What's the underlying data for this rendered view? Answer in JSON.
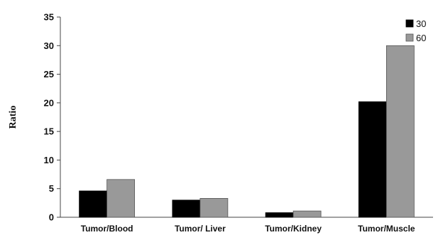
{
  "chart_data": {
    "type": "bar",
    "categories": [
      "Tumor/Blood",
      "Tumor/ Liver",
      "Tumor/Kidney",
      "Tumor/Muscle"
    ],
    "series": [
      {
        "name": "30",
        "values": [
          4.6,
          3.0,
          0.8,
          20.2
        ],
        "color": "#000000"
      },
      {
        "name": "60",
        "values": [
          6.6,
          3.3,
          1.1,
          30.0
        ],
        "color": "#999999"
      }
    ],
    "ylabel": "Ratio",
    "ylim": [
      0,
      35
    ],
    "yticks": [
      0,
      5,
      10,
      15,
      20,
      25,
      30,
      35
    ],
    "grid": false,
    "legend": "top-right"
  }
}
